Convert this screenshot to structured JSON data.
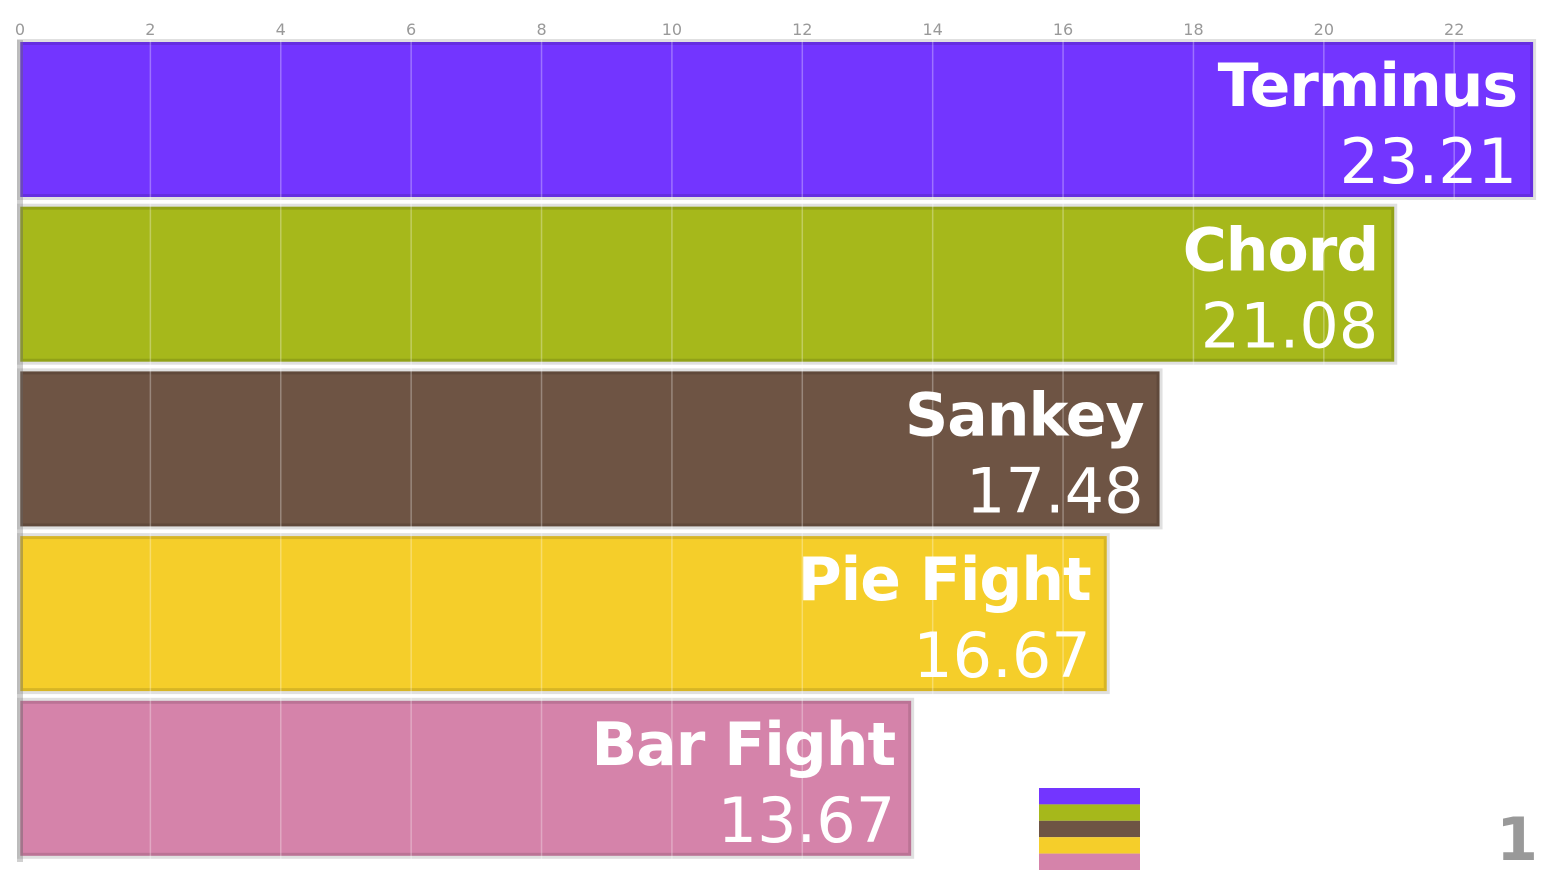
{
  "chart_data": {
    "type": "bar",
    "orientation": "horizontal",
    "categories": [
      "Terminus",
      "Chord",
      "Sankey",
      "Pie Fight",
      "Bar Fight"
    ],
    "values": [
      23.21,
      21.08,
      17.48,
      16.67,
      13.67
    ],
    "colors": [
      "#7335ff",
      "#a6b81b",
      "#6e5444",
      "#f5ce2a",
      "#d583aa"
    ],
    "xlim": [
      0,
      23.5
    ],
    "xticks": [
      0,
      2,
      4,
      6,
      8,
      10,
      12,
      14,
      16,
      18,
      20,
      22
    ],
    "grid": true,
    "counter": 1
  }
}
